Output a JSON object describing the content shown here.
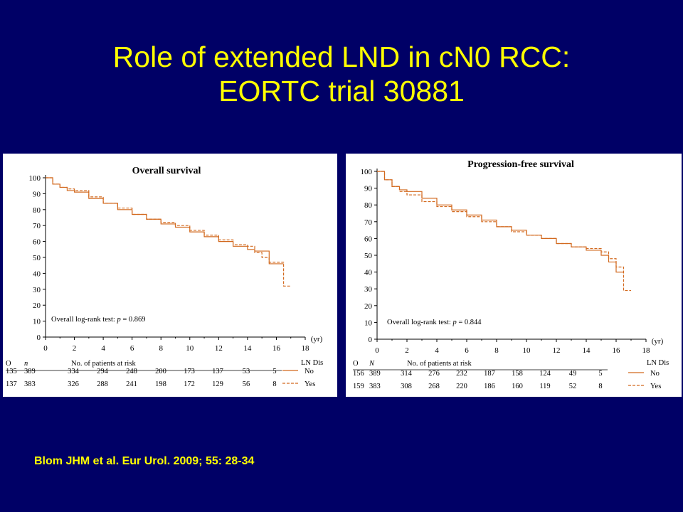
{
  "slide": {
    "title_line1": "Role of extended LND in cN0 RCC:",
    "title_line2": "EORTC trial 30881",
    "citation": "Blom JHM et al. Eur Urol. 2009; 55: 28-34"
  },
  "colors": {
    "background": "#000066",
    "title": "#ffff00",
    "curve": "#d2691e"
  },
  "chart_data": [
    {
      "type": "line",
      "title": "Overall survival",
      "xlabel": "(yr)",
      "ylabel": "",
      "xlim": [
        0,
        18
      ],
      "ylim": [
        0,
        100
      ],
      "x_ticks": [
        "0",
        "2",
        "4",
        "6",
        "8",
        "10",
        "12",
        "14",
        "16",
        "18"
      ],
      "y_ticks": [
        "0",
        "10",
        "20",
        "30",
        "40",
        "50",
        "60",
        "70",
        "80",
        "90",
        "100"
      ],
      "grid": false,
      "annotation_prefix": "Overall log-rank test: ",
      "annotation_p": "p",
      "annotation_value": " = 0.869",
      "legend_title": "LN Dis",
      "legend_position": "bottom-right",
      "series": [
        {
          "name": "No",
          "style": "solid",
          "x": [
            0,
            0.5,
            1,
            1.5,
            2,
            3,
            4,
            5,
            6,
            7,
            8,
            9,
            10,
            11,
            12,
            13,
            14,
            14.5,
            15,
            15.5,
            16,
            16.5
          ],
          "y": [
            100,
            96,
            94,
            92,
            91,
            87,
            84,
            80,
            77,
            74,
            71,
            69,
            66,
            63,
            60,
            57,
            55,
            54,
            54,
            46,
            46,
            46
          ]
        },
        {
          "name": "Yes",
          "style": "dashed",
          "x": [
            0,
            0.5,
            1,
            1.5,
            2,
            3,
            4,
            5,
            6,
            7,
            8,
            9,
            10,
            11,
            12,
            13,
            14,
            14.5,
            15,
            15.5,
            16,
            16.5,
            17
          ],
          "y": [
            100,
            96,
            94,
            93,
            92,
            88,
            84,
            81,
            77,
            74,
            72,
            70,
            67,
            64,
            61,
            58,
            57,
            53,
            50,
            47,
            47,
            32,
            32
          ]
        }
      ],
      "risk_table": {
        "col_o": "O",
        "col_n": "n",
        "header": "No. of patients at risk",
        "rows": [
          {
            "o": "135",
            "n": "389",
            "values": [
              "334",
              "294",
              "248",
              "200",
              "173",
              "137",
              "53",
              "5"
            ],
            "label": "No"
          },
          {
            "o": "137",
            "n": "383",
            "values": [
              "326",
              "288",
              "241",
              "198",
              "172",
              "129",
              "56",
              "8"
            ],
            "label": "Yes"
          }
        ]
      }
    },
    {
      "type": "line",
      "title": "Progression-free survival",
      "xlabel": "(yr)",
      "ylabel": "",
      "xlim": [
        0,
        18
      ],
      "ylim": [
        0,
        100
      ],
      "x_ticks": [
        "0",
        "2",
        "4",
        "6",
        "8",
        "10",
        "12",
        "14",
        "16",
        "18"
      ],
      "y_ticks": [
        "0",
        "10",
        "20",
        "30",
        "40",
        "50",
        "60",
        "70",
        "80",
        "90",
        "100"
      ],
      "grid": false,
      "annotation_prefix": "Overall log-rank test: ",
      "annotation_p": "p",
      "annotation_value": " = 0.844",
      "legend_title": "LN Dis",
      "legend_position": "bottom-right",
      "series": [
        {
          "name": "No",
          "style": "solid",
          "x": [
            0,
            0.5,
            1,
            1.5,
            2,
            3,
            4,
            5,
            6,
            7,
            8,
            9,
            10,
            11,
            12,
            13,
            14,
            15,
            15.5,
            16,
            16.5
          ],
          "y": [
            100,
            95,
            91,
            89,
            88,
            84,
            80,
            77,
            74,
            71,
            67,
            65,
            62,
            60,
            57,
            55,
            53,
            50,
            46,
            40,
            40
          ]
        },
        {
          "name": "Yes",
          "style": "dashed",
          "x": [
            0,
            0.5,
            1,
            1.5,
            2,
            3,
            4,
            5,
            6,
            7,
            8,
            9,
            10,
            11,
            12,
            13,
            14,
            15,
            15.5,
            16,
            16.5,
            17
          ],
          "y": [
            100,
            95,
            91,
            88,
            86,
            82,
            79,
            76,
            73,
            70,
            67,
            64,
            62,
            60,
            57,
            55,
            54,
            52,
            48,
            43,
            29,
            29
          ]
        }
      ],
      "risk_table": {
        "col_o": "O",
        "col_n": "N",
        "header": "No. of patients at risk",
        "rows": [
          {
            "o": "156",
            "n": "389",
            "values": [
              "314",
              "276",
              "232",
              "187",
              "158",
              "124",
              "49",
              "5"
            ],
            "label": "No"
          },
          {
            "o": "159",
            "n": "383",
            "values": [
              "308",
              "268",
              "220",
              "186",
              "160",
              "119",
              "52",
              "8"
            ],
            "label": "Yes"
          }
        ]
      }
    }
  ]
}
